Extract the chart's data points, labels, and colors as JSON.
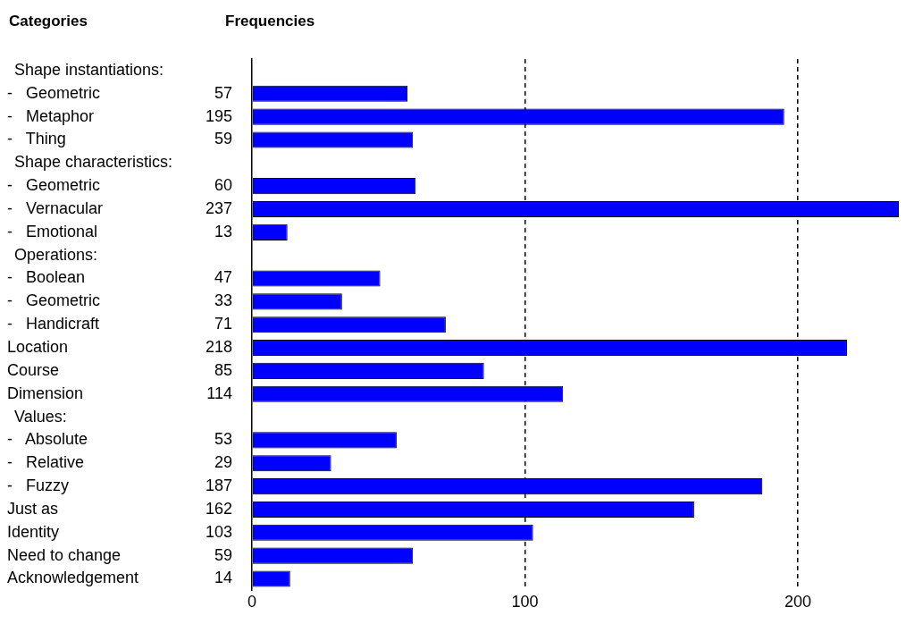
{
  "chart_data": {
    "type": "bar",
    "orientation": "horizontal",
    "ylabel": "Categories",
    "xlabel": "Frequencies",
    "annotations": [
      "Shape instantiations:",
      "Shape characteristics:",
      "Operations:",
      "Values:"
    ],
    "categories": [
      null,
      "-   Geometric",
      "-   Metaphor",
      "-   Thing",
      null,
      "-   Geometric",
      "-   Vernacular",
      "-   Emotional",
      null,
      "-   Boolean",
      "-   Geometric",
      "-   Handicraft",
      "Location",
      "Course",
      "Dimension",
      null,
      "-   Absolute",
      "-   Relative",
      "-   Fuzzy",
      "Just as",
      "Identity",
      "Need to change",
      "Acknowledgement"
    ],
    "values": [
      null,
      57,
      195,
      59,
      null,
      60,
      237,
      13,
      null,
      47,
      33,
      71,
      218,
      85,
      114,
      null,
      53,
      29,
      187,
      162,
      103,
      59,
      14
    ],
    "color": "#0000ff",
    "xlim": [
      0,
      237
    ],
    "xticks": [
      0,
      100,
      200
    ],
    "grid": "x",
    "line_style": "dashed",
    "data_labels": true,
    "legend": false
  }
}
